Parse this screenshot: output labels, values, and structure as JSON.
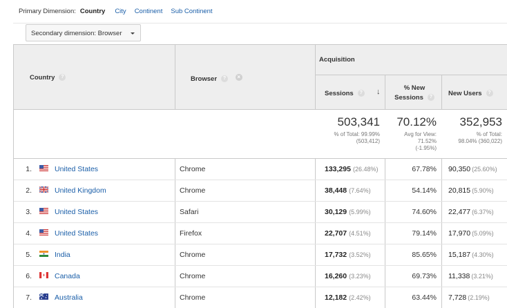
{
  "primary_dimension": {
    "label": "Primary Dimension:",
    "active": "Country",
    "options": [
      "City",
      "Continent",
      "Sub Continent"
    ]
  },
  "secondary_dimension": {
    "label": "Secondary dimension: Browser"
  },
  "columns": {
    "country": "Country",
    "browser": "Browser",
    "group": "Acquisition",
    "sessions": "Sessions",
    "new_sessions": "% New Sessions",
    "new_users": "New Users"
  },
  "icons": {
    "help": "help-icon",
    "remove": "remove-icon",
    "sort": "sort-down-arrow-icon"
  },
  "totals": {
    "sessions": {
      "value": "503,341",
      "line1": "% of Total: 99.99%",
      "line2": "(503,412)"
    },
    "new_sessions": {
      "value": "70.12%",
      "line1": "Avg for View:",
      "line2": "71.52%",
      "line3": "(-1.95%)"
    },
    "new_users": {
      "value": "352,953",
      "line1": "% of Total:",
      "line2": "98.04% (360,022)"
    }
  },
  "rows": [
    {
      "idx": "1.",
      "country": "United States",
      "flag": "us",
      "browser": "Chrome",
      "sessions": "133,295",
      "sessions_pct": "(26.48%)",
      "new_sessions": "67.78%",
      "new_users": "90,350",
      "new_users_pct": "(25.60%)"
    },
    {
      "idx": "2.",
      "country": "United Kingdom",
      "flag": "uk",
      "browser": "Chrome",
      "sessions": "38,448",
      "sessions_pct": "(7.64%)",
      "new_sessions": "54.14%",
      "new_users": "20,815",
      "new_users_pct": "(5.90%)"
    },
    {
      "idx": "3.",
      "country": "United States",
      "flag": "us",
      "browser": "Safari",
      "sessions": "30,129",
      "sessions_pct": "(5.99%)",
      "new_sessions": "74.60%",
      "new_users": "22,477",
      "new_users_pct": "(6.37%)"
    },
    {
      "idx": "4.",
      "country": "United States",
      "flag": "us",
      "browser": "Firefox",
      "sessions": "22,707",
      "sessions_pct": "(4.51%)",
      "new_sessions": "79.14%",
      "new_users": "17,970",
      "new_users_pct": "(5.09%)"
    },
    {
      "idx": "5.",
      "country": "India",
      "flag": "in",
      "browser": "Chrome",
      "sessions": "17,732",
      "sessions_pct": "(3.52%)",
      "new_sessions": "85.65%",
      "new_users": "15,187",
      "new_users_pct": "(4.30%)"
    },
    {
      "idx": "6.",
      "country": "Canada",
      "flag": "ca",
      "browser": "Chrome",
      "sessions": "16,260",
      "sessions_pct": "(3.23%)",
      "new_sessions": "69.73%",
      "new_users": "11,338",
      "new_users_pct": "(3.21%)"
    },
    {
      "idx": "7.",
      "country": "Australia",
      "flag": "au",
      "browser": "Chrome",
      "sessions": "12,182",
      "sessions_pct": "(2.42%)",
      "new_sessions": "63.44%",
      "new_users": "7,728",
      "new_users_pct": "(2.19%)"
    }
  ]
}
